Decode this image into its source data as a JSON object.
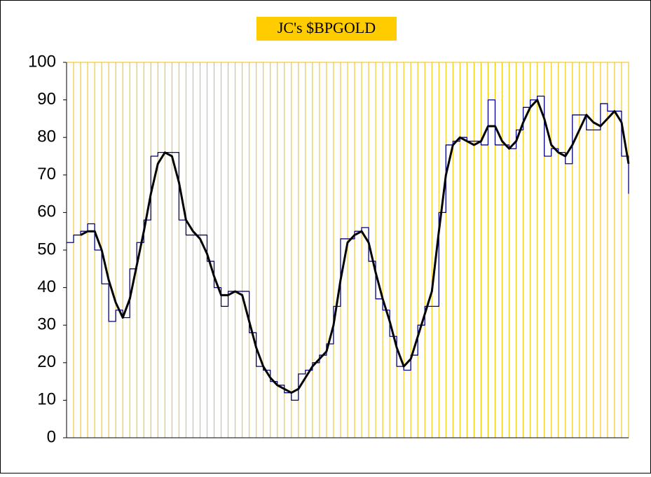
{
  "chart_data": {
    "type": "line",
    "title": "JC's $BPGOLD",
    "categories": [
      null,
      null,
      null,
      null,
      null,
      null,
      null,
      null,
      null,
      null,
      null,
      null,
      null,
      null,
      null,
      null,
      null,
      null,
      null,
      null,
      null,
      null,
      null,
      null,
      null,
      null,
      null,
      null,
      null,
      null,
      null,
      null,
      null,
      null,
      null,
      null,
      null,
      null,
      null,
      null,
      null,
      null,
      null,
      null,
      null,
      null,
      null,
      null,
      null,
      null,
      null,
      null,
      null,
      null,
      null,
      null,
      null,
      null,
      null,
      null,
      null,
      null,
      null,
      null,
      null,
      null,
      null,
      null,
      null,
      null,
      null,
      null,
      null,
      null,
      null,
      null,
      null,
      null,
      null,
      null,
      null
    ],
    "series": [
      {
        "color": "#000080",
        "width": 1.3,
        "step": true,
        "values": [
          52,
          54,
          55,
          57,
          50,
          41,
          31,
          34,
          32,
          45,
          52,
          58,
          75,
          76,
          76,
          76,
          58,
          54,
          54,
          54,
          47,
          40,
          35,
          39,
          39,
          39,
          28,
          19,
          18,
          15,
          14,
          12,
          10,
          17,
          18,
          20,
          22,
          25,
          35,
          53,
          53,
          55,
          56,
          47,
          37,
          34,
          27,
          19,
          18,
          22,
          30,
          35,
          35,
          60,
          78,
          79,
          80,
          79,
          79,
          78,
          90,
          78,
          78,
          77,
          82,
          88,
          90,
          91,
          75,
          77,
          76,
          73,
          86,
          86,
          82,
          82,
          89,
          87,
          87,
          75,
          65
        ]
      },
      {
        "color": "#000000",
        "width": 3,
        "step": false,
        "values": [
          null,
          null,
          54,
          55,
          55,
          50,
          42,
          36,
          32,
          37,
          46,
          55,
          65,
          73,
          76,
          75,
          68,
          58,
          55,
          53,
          49,
          43,
          38,
          38,
          39,
          38,
          31,
          24,
          19,
          16,
          14,
          13,
          12,
          13,
          16,
          19,
          21,
          23,
          30,
          42,
          52,
          54,
          55,
          52,
          44,
          37,
          31,
          24,
          19,
          21,
          27,
          33,
          39,
          55,
          70,
          78,
          80,
          79,
          78,
          79,
          83,
          83,
          79,
          77,
          79,
          84,
          88,
          90,
          85,
          78,
          76,
          75,
          78,
          82,
          86,
          84,
          83,
          85,
          87,
          84,
          73
        ]
      }
    ],
    "ylim": [
      0,
      100
    ],
    "yticks": [
      0,
      10,
      20,
      30,
      40,
      50,
      60,
      70,
      80,
      90,
      100
    ],
    "grid": true
  }
}
